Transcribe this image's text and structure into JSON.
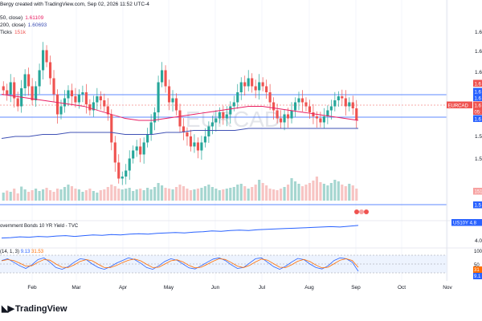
{
  "header": {
    "line1": "Bergy created with TradingView.com, Sep 02, 2026 11:52 UTC-4",
    "ma50_label": "50, close)",
    "ma50_value": "1.61109",
    "ma200_label": "200, close)",
    "ma200_value": "1.60693",
    "ticks_label": "Ticks",
    "ticks_value": "151k"
  },
  "watermark": "EURCAD",
  "logo_text": "TradingView",
  "colors": {
    "up": "#26a69a",
    "down": "#ef5350",
    "ma50": "#e91e63",
    "ma200": "#3f51b5",
    "bond": "#2962ff",
    "stoch_k": "#2962ff",
    "stoch_d": "#ff6d00"
  },
  "price_axis_labels": [
    "1.6",
    "1.6",
    "1.6",
    "1.6",
    "1.5",
    "1.5"
  ],
  "price_tags": [
    {
      "text": "1.6",
      "color": "#ef5350"
    },
    {
      "text": "1.6",
      "color": "#2962ff"
    },
    {
      "text": "1.6",
      "color": "#2962ff"
    },
    {
      "text": "EURCAD",
      "color": "#ef5350"
    },
    {
      "text": "1.6",
      "color": "#ef5350"
    },
    {
      "text": "05:",
      "color": "#ef5350"
    },
    {
      "text": "1.6",
      "color": "#2962ff"
    }
  ],
  "volume_tag": "151",
  "bottom_tag": "1.5",
  "bond_pane": {
    "title": "overnment Bonds 10 YR Yield - TVC",
    "tag_symbol": "US10Y",
    "tag_value": "4.8",
    "axis_label": "4.0"
  },
  "stoch_pane": {
    "title": "(14, 1, 3)",
    "k_value": "9.13",
    "d_value": "31.53",
    "axis_labels": [
      "100",
      "50",
      "31",
      "9.1"
    ]
  },
  "time_axis": [
    "Feb",
    "Mar",
    "Apr",
    "May",
    "Jun",
    "Jul",
    "Aug",
    "Sep",
    "Oct",
    "Nov"
  ],
  "chart_data": {
    "type": "candlestick",
    "x_start_month": "Jan",
    "dates_note": "daily candles from mid-Jan to early Sep",
    "ylim": [
      1.575,
      1.655
    ],
    "candles_close": [
      1.626,
      1.624,
      1.63,
      1.622,
      1.618,
      1.627,
      1.634,
      1.628,
      1.621,
      1.628,
      1.636,
      1.646,
      1.64,
      1.632,
      1.624,
      1.614,
      1.618,
      1.622,
      1.626,
      1.623,
      1.62,
      1.624,
      1.625,
      1.619,
      1.616,
      1.62,
      1.623,
      1.621,
      1.618,
      1.614,
      1.6,
      1.59,
      1.582,
      1.583,
      1.586,
      1.592,
      1.596,
      1.598,
      1.594,
      1.6,
      1.604,
      1.61,
      1.615,
      1.63,
      1.636,
      1.628,
      1.62,
      1.622,
      1.616,
      1.608,
      1.605,
      1.603,
      1.598,
      1.6,
      1.596,
      1.6,
      1.603,
      1.608,
      1.61,
      1.612,
      1.615,
      1.612,
      1.614,
      1.618,
      1.62,
      1.625,
      1.63,
      1.628,
      1.632,
      1.628,
      1.626,
      1.63,
      1.628,
      1.625,
      1.62,
      1.616,
      1.612,
      1.61,
      1.614,
      1.612,
      1.616,
      1.62,
      1.622,
      1.62,
      1.618,
      1.615,
      1.613,
      1.612,
      1.61,
      1.613,
      1.616,
      1.618,
      1.621,
      1.623,
      1.622,
      1.618,
      1.62,
      1.617,
      1.611
    ],
    "ma50": [
      1.624,
      1.623,
      1.622,
      1.621,
      1.62,
      1.619,
      1.618,
      1.616,
      1.614,
      1.612,
      1.611,
      1.611,
      1.612,
      1.613,
      1.614,
      1.615,
      1.616,
      1.617,
      1.618,
      1.618,
      1.617,
      1.616,
      1.615,
      1.614,
      1.613,
      1.612,
      1.611
    ],
    "ma200": [
      1.602,
      1.603,
      1.603,
      1.604,
      1.604,
      1.605,
      1.605,
      1.605,
      1.605,
      1.604,
      1.604,
      1.604,
      1.605,
      1.605,
      1.606,
      1.606,
      1.606,
      1.606,
      1.607,
      1.607,
      1.607,
      1.607,
      1.607,
      1.607,
      1.607,
      1.607,
      1.607
    ],
    "volume": [
      0.2,
      0.25,
      0.22,
      0.3,
      0.18,
      0.35,
      0.28,
      0.22,
      0.26,
      0.3,
      0.24,
      0.28,
      0.32,
      0.26,
      0.22,
      0.3,
      0.28,
      0.34,
      0.4,
      0.36,
      0.3,
      0.28,
      0.22,
      0.26,
      0.3,
      0.24,
      0.2,
      0.26,
      0.28,
      0.34,
      0.4,
      0.36,
      0.3,
      0.28,
      0.3,
      0.32,
      0.24,
      0.28,
      0.3,
      0.26,
      0.32,
      0.28,
      0.34,
      0.44,
      0.38,
      0.32,
      0.3,
      0.28,
      0.34,
      0.4,
      0.36,
      0.3,
      0.26,
      0.28,
      0.3,
      0.32,
      0.36,
      0.4,
      0.34,
      0.3,
      0.26,
      0.28,
      0.3,
      0.32,
      0.34,
      0.4,
      0.42,
      0.36,
      0.3,
      0.34,
      0.4,
      0.52,
      0.44,
      0.38,
      0.3,
      0.28,
      0.26,
      0.3,
      0.34,
      0.4,
      0.56,
      0.48,
      0.42,
      0.36,
      0.4,
      0.44,
      0.5,
      0.6,
      0.46,
      0.42,
      0.38,
      0.44,
      0.52,
      0.48,
      0.4,
      0.36,
      0.42,
      0.38,
      0.3
    ],
    "bond_yield": [
      4.52,
      4.53,
      4.55,
      4.54,
      4.56,
      4.55,
      4.57,
      4.58,
      4.56,
      4.58,
      4.6,
      4.59,
      4.61,
      4.6,
      4.62,
      4.63,
      4.62,
      4.64,
      4.65,
      4.66,
      4.65,
      4.67,
      4.68,
      4.7,
      4.69,
      4.71,
      4.72,
      4.71,
      4.73,
      4.74,
      4.75,
      4.76,
      4.77,
      4.78,
      4.79,
      4.8,
      4.81,
      4.8,
      4.82,
      4.84
    ],
    "stoch_k": [
      70,
      80,
      60,
      40,
      25,
      45,
      75,
      85,
      60,
      30,
      20,
      35,
      60,
      80,
      75,
      50,
      30,
      20,
      35,
      55,
      70,
      85,
      75,
      55,
      30,
      20,
      40,
      65,
      80,
      72,
      50,
      28,
      22,
      40,
      60,
      78,
      85,
      70,
      45,
      25,
      30,
      55,
      80,
      85,
      60,
      35,
      20,
      38,
      62,
      82,
      75,
      50,
      30,
      22,
      40,
      70,
      85,
      80,
      60,
      9
    ],
    "stoch_d": [
      68,
      75,
      70,
      55,
      38,
      40,
      60,
      75,
      72,
      50,
      32,
      30,
      45,
      65,
      75,
      68,
      48,
      30,
      30,
      42,
      58,
      72,
      78,
      68,
      48,
      30,
      32,
      50,
      68,
      74,
      62,
      42,
      28,
      32,
      48,
      66,
      80,
      76,
      58,
      38,
      30,
      42,
      62,
      78,
      72,
      52,
      32,
      30,
      46,
      66,
      76,
      64,
      44,
      28,
      32,
      52,
      72,
      80,
      70,
      31.53
    ]
  }
}
